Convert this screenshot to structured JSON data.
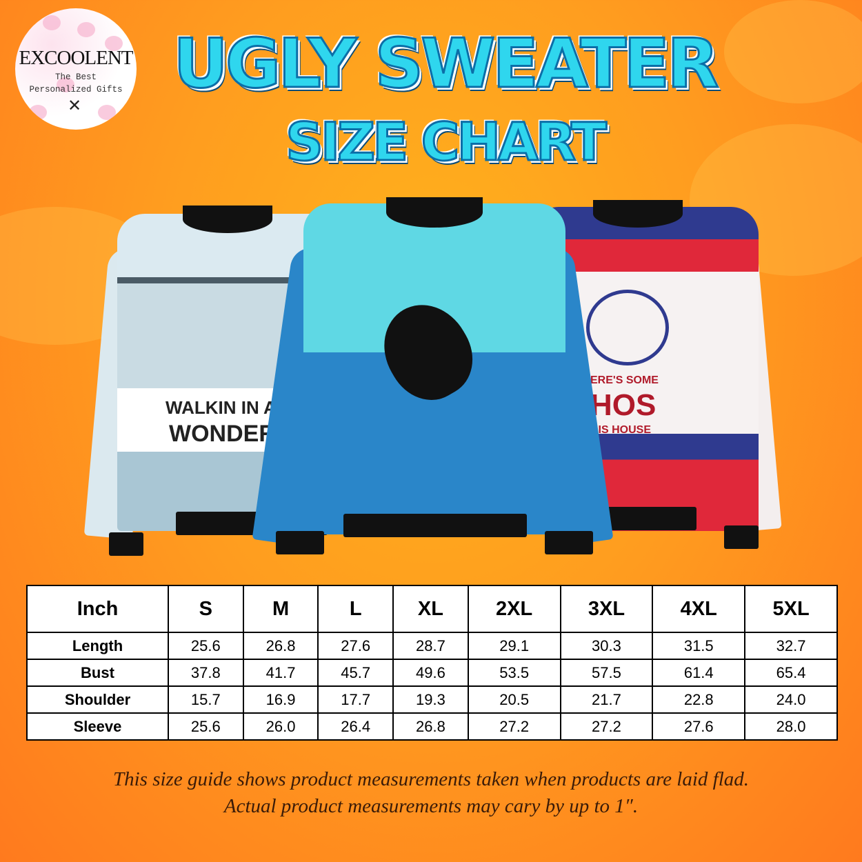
{
  "logo": {
    "brand": "EXCOOLENT",
    "tagline_1": "The Best",
    "tagline_2": "Personalized Gifts"
  },
  "title": {
    "line1": "UGLY SWEATER",
    "line2": "SIZE CHART"
  },
  "sweaters": [
    {
      "name": "winter wonderland dachshund sweater",
      "text_1": "WALKIN IN A W",
      "text_2": "WONDERL",
      "colors": {
        "body": "#dfeef3",
        "accent": "#4a5b66"
      }
    },
    {
      "name": "orca whale sweater",
      "colors": {
        "body": "#2a86c9",
        "accent": "#5fd8e4"
      }
    },
    {
      "name": "santa sweater",
      "text_1": "ERE'S SOME",
      "text_2": "HOS",
      "text_3": "HIS HOUSE",
      "colors": {
        "body": "#f6f2f2",
        "accent": "#e0283a",
        "band": "#2f3a8f"
      }
    }
  ],
  "table": {
    "headers": [
      "Inch",
      "S",
      "M",
      "L",
      "XL",
      "2XL",
      "3XL",
      "4XL",
      "5XL"
    ],
    "rows": [
      {
        "label": "Length",
        "values": [
          "25.6",
          "26.8",
          "27.6",
          "28.7",
          "29.1",
          "30.3",
          "31.5",
          "32.7"
        ]
      },
      {
        "label": "Bust",
        "values": [
          "37.8",
          "41.7",
          "45.7",
          "49.6",
          "53.5",
          "57.5",
          "61.4",
          "65.4"
        ]
      },
      {
        "label": "Shoulder",
        "values": [
          "15.7",
          "16.9",
          "17.7",
          "19.3",
          "20.5",
          "21.7",
          "22.8",
          "24.0"
        ]
      },
      {
        "label": "Sleeve",
        "values": [
          "25.6",
          "26.0",
          "26.4",
          "26.8",
          "27.2",
          "27.2",
          "27.6",
          "28.0"
        ]
      }
    ]
  },
  "note": {
    "line1": "This size guide shows product measurements taken when products are laid flad.",
    "line2": "Actual product measurements may cary by up to 1″."
  }
}
